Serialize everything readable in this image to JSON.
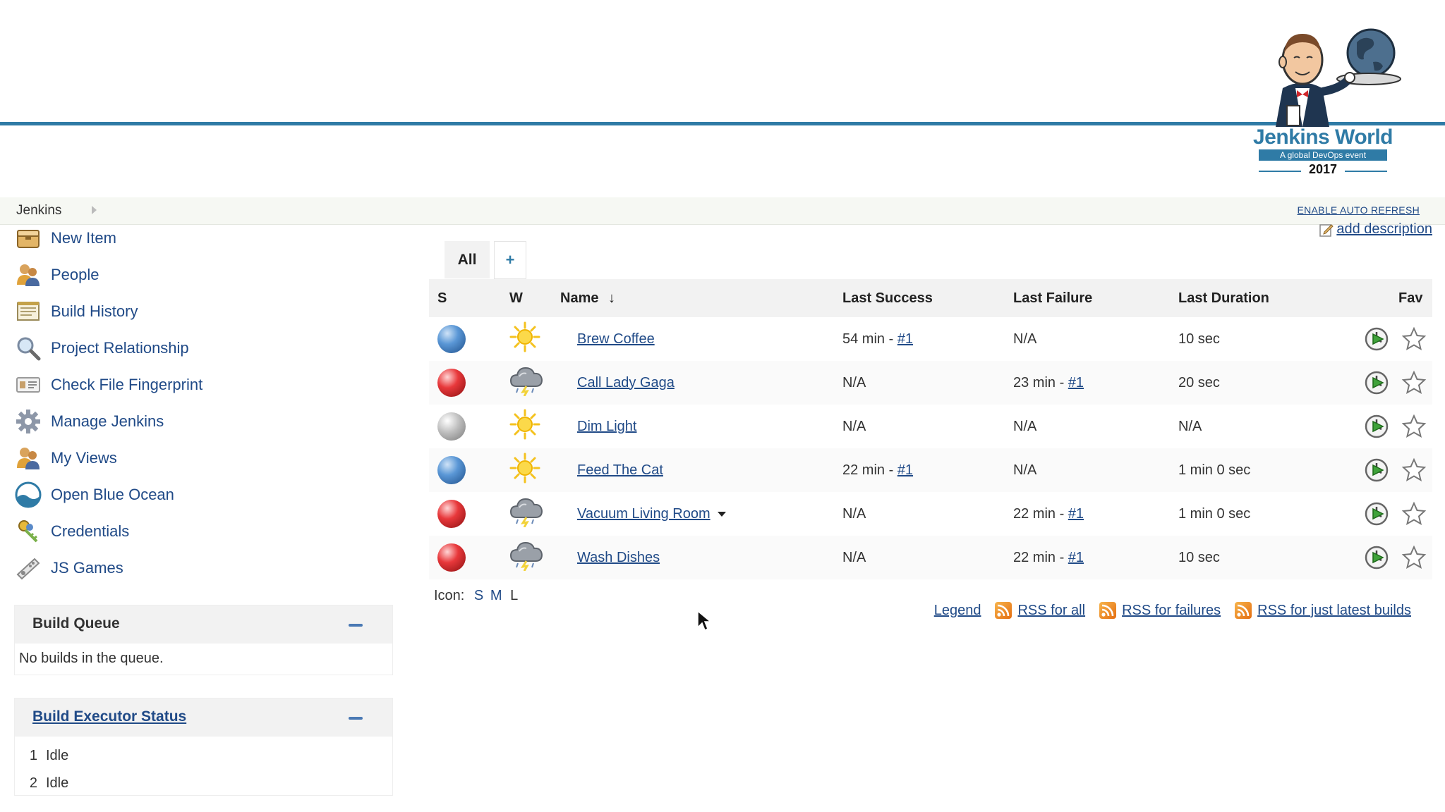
{
  "header": {
    "logo_brand": "Jenkins World",
    "logo_tagline": "A global DevOps event",
    "logo_year": "2017"
  },
  "breadcrumb": {
    "root": "Jenkins",
    "enable_auto_refresh": "ENABLE AUTO REFRESH"
  },
  "sidebar": {
    "tasks": [
      {
        "name": "new-item",
        "icon": "new-item-icon",
        "label": "New Item"
      },
      {
        "name": "people",
        "icon": "people-icon",
        "label": "People"
      },
      {
        "name": "build-history",
        "icon": "notepad-icon",
        "label": "Build History"
      },
      {
        "name": "project-relationship",
        "icon": "magnifier-icon",
        "label": "Project Relationship"
      },
      {
        "name": "check-file-fingerprint",
        "icon": "fingerprint-icon",
        "label": "Check File Fingerprint"
      },
      {
        "name": "manage-jenkins",
        "icon": "gear-icon",
        "label": "Manage Jenkins"
      },
      {
        "name": "my-views",
        "icon": "users-icon",
        "label": "My Views"
      },
      {
        "name": "open-blue-ocean",
        "icon": "blue-ocean-icon",
        "label": "Open Blue Ocean"
      },
      {
        "name": "credentials",
        "icon": "keys-icon",
        "label": "Credentials"
      },
      {
        "name": "js-games",
        "icon": "gamepad-icon",
        "label": "JS Games"
      }
    ],
    "build_queue": {
      "title": "Build Queue",
      "empty_text": "No builds in the queue."
    },
    "build_executor": {
      "title": "Build Executor Status",
      "executors": [
        {
          "number": "1",
          "status": "Idle"
        },
        {
          "number": "2",
          "status": "Idle"
        }
      ]
    }
  },
  "main": {
    "add_description": "add description",
    "tabs": [
      {
        "label": "All",
        "active": true
      },
      {
        "label": "+",
        "active": false
      }
    ],
    "columns": {
      "status": "S",
      "weather": "W",
      "name": "Name",
      "name_sort": "↓",
      "last_success": "Last Success",
      "last_failure": "Last Failure",
      "last_duration": "Last Duration",
      "fav": "Fav"
    },
    "jobs": [
      {
        "status": "blue",
        "weather": "sunny",
        "name": "Brew Coffee",
        "last_success": "54 min - ",
        "last_success_build": "#1",
        "last_failure": "N/A",
        "last_failure_build": "",
        "last_duration": "10 sec",
        "dropdown": false
      },
      {
        "status": "red",
        "weather": "storm",
        "name": "Call Lady Gaga",
        "last_success": "N/A",
        "last_success_build": "",
        "last_failure": "23 min - ",
        "last_failure_build": "#1",
        "last_duration": "20 sec",
        "dropdown": false
      },
      {
        "status": "grey",
        "weather": "sunny",
        "name": "Dim Light",
        "last_success": "N/A",
        "last_success_build": "",
        "last_failure": "N/A",
        "last_failure_build": "",
        "last_duration": "N/A",
        "dropdown": false
      },
      {
        "status": "blue",
        "weather": "sunny",
        "name": "Feed The Cat",
        "last_success": "22 min - ",
        "last_success_build": "#1",
        "last_failure": "N/A",
        "last_failure_build": "",
        "last_duration": "1 min 0 sec",
        "dropdown": false
      },
      {
        "status": "red",
        "weather": "storm",
        "name": "Vacuum Living Room",
        "last_success": "N/A",
        "last_success_build": "",
        "last_failure": "22 min - ",
        "last_failure_build": "#1",
        "last_duration": "1 min 0 sec",
        "dropdown": true
      },
      {
        "status": "red",
        "weather": "storm",
        "name": "Wash Dishes",
        "last_success": "N/A",
        "last_success_build": "",
        "last_failure": "22 min - ",
        "last_failure_build": "#1",
        "last_duration": "10 sec",
        "dropdown": false
      }
    ],
    "icon_size": {
      "label": "Icon:",
      "small": "S",
      "medium": "M",
      "large": "L"
    },
    "rss": {
      "legend": "Legend",
      "all": "RSS for all",
      "failures": "RSS for failures",
      "latest": "RSS for just latest builds"
    }
  },
  "colors": {
    "header_line": "#2f7ba6",
    "link": "#204a87",
    "success_ball": "#5a97d6",
    "failure_ball": "#e8383b",
    "disabled_ball": "#bdbdbd"
  }
}
